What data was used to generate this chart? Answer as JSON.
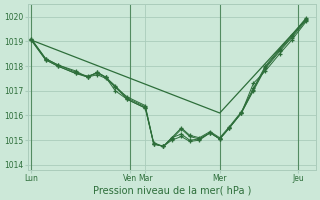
{
  "background_color": "#cce8d8",
  "grid_color": "#aaccbb",
  "line_color": "#2d6e3a",
  "xlabel": "Pression niveau de la mer( hPa )",
  "ylim": [
    1013.8,
    1020.5
  ],
  "yticks": [
    1014,
    1015,
    1016,
    1017,
    1018,
    1019,
    1020
  ],
  "xlim": [
    0,
    24
  ],
  "day_tick_positions": [
    0.3,
    8.5,
    9.8,
    16.0,
    22.5
  ],
  "day_labels": [
    "Lun",
    "Ven",
    "Mar",
    "Mer",
    "Jeu"
  ],
  "vline_positions": [
    0.3,
    8.5,
    16.0,
    22.5
  ],
  "series_x": [
    0.3,
    1.5,
    2.5,
    4.0,
    5.0,
    5.8,
    6.5,
    7.3,
    8.3,
    9.8,
    10.5,
    11.3,
    12.0,
    12.8,
    13.5,
    14.3,
    15.2,
    16.0,
    16.8,
    17.8,
    18.8,
    19.8,
    21.0,
    22.0,
    23.2
  ],
  "series": [
    [
      1019.1,
      1018.3,
      1018.05,
      1017.8,
      1017.55,
      1017.75,
      1017.55,
      1017.15,
      1016.75,
      1016.4,
      1014.85,
      1014.75,
      1015.1,
      1015.25,
      1015.0,
      1015.05,
      1015.3,
      1015.05,
      1015.5,
      1016.1,
      1017.3,
      1017.8,
      1018.5,
      1019.05,
      1019.8
    ],
    [
      1019.1,
      1018.3,
      1018.05,
      1017.75,
      1017.55,
      1017.75,
      1017.55,
      1017.0,
      1016.65,
      1016.3,
      1014.85,
      1014.75,
      1015.0,
      1015.15,
      1014.95,
      1015.0,
      1015.3,
      1015.05,
      1015.5,
      1016.1,
      1017.0,
      1017.9,
      1018.6,
      1019.15,
      1019.85
    ],
    [
      1019.05,
      1018.25,
      1018.0,
      1017.7,
      1017.55,
      1017.65,
      1017.5,
      1017.15,
      1016.65,
      1016.3,
      1014.85,
      1014.75,
      1015.05,
      1015.45,
      1015.15,
      1015.05,
      1015.3,
      1015.05,
      1015.5,
      1016.1,
      1017.05,
      1017.95,
      1018.65,
      1019.2,
      1019.9
    ],
    [
      1019.05,
      1018.25,
      1018.0,
      1017.7,
      1017.6,
      1017.7,
      1017.55,
      1017.2,
      1016.7,
      1016.35,
      1014.9,
      1014.75,
      1015.1,
      1015.5,
      1015.2,
      1015.1,
      1015.35,
      1015.1,
      1015.55,
      1016.15,
      1017.1,
      1018.0,
      1018.7,
      1019.25,
      1019.95
    ]
  ],
  "smooth_line_x": [
    0.3,
    16.0,
    23.2
  ],
  "smooth_line_y": [
    1019.05,
    1016.1,
    1019.9
  ]
}
